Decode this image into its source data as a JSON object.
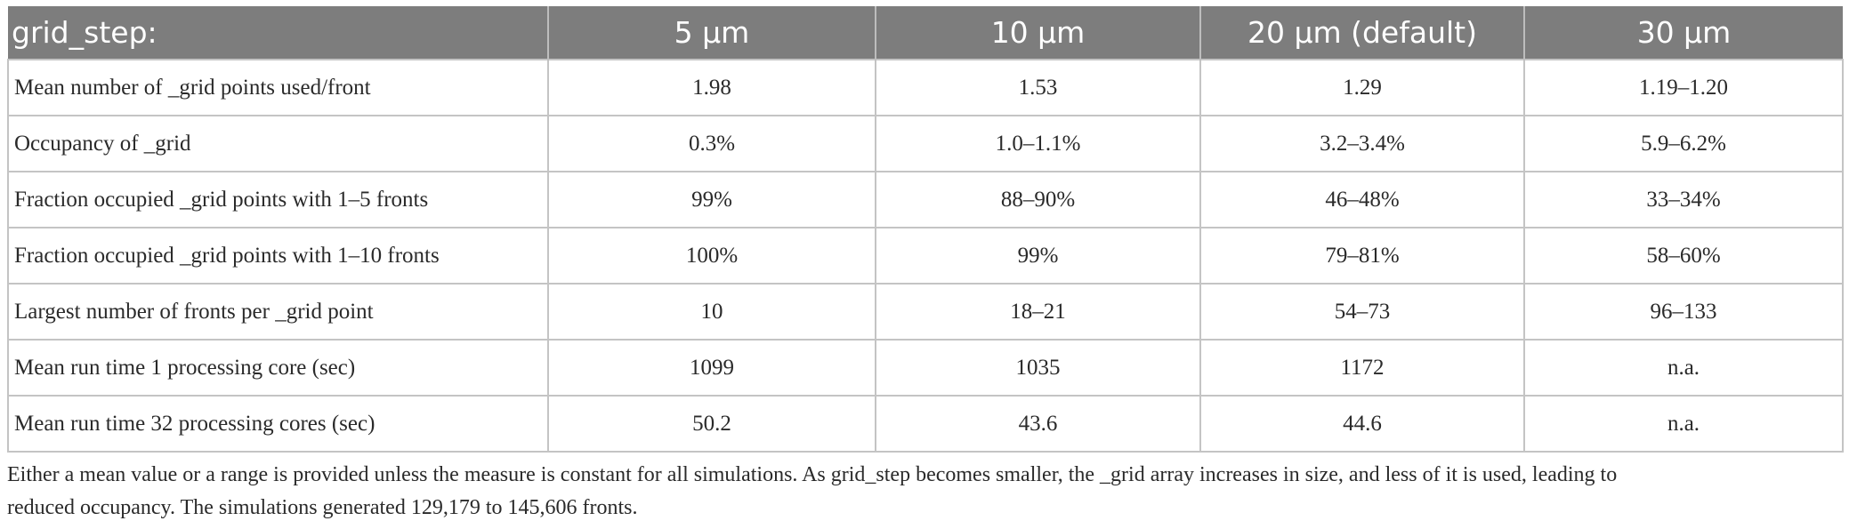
{
  "table": {
    "headers": [
      "grid_step:",
      "5 μm",
      "10 μm",
      "20 μm (default)",
      "30 μm"
    ],
    "rows": [
      [
        "Mean number of _grid points used/front",
        "1.98",
        "1.53",
        "1.29",
        "1.19–1.20"
      ],
      [
        "Occupancy of _grid",
        "0.3%",
        "1.0–1.1%",
        "3.2–3.4%",
        "5.9–6.2%"
      ],
      [
        "Fraction occupied _grid points with 1–5 fronts",
        "99%",
        "88–90%",
        "46–48%",
        "33–34%"
      ],
      [
        "Fraction occupied _grid points with 1–10 fronts",
        "100%",
        "99%",
        "79–81%",
        "58–60%"
      ],
      [
        "Largest number of fronts per _grid point",
        "10",
        "18–21",
        "54–73",
        "96–133"
      ],
      [
        "Mean run time 1 processing core (sec)",
        "1099",
        "1035",
        "1172",
        "n.a."
      ],
      [
        "Mean run time 32 processing cores (sec)",
        "50.2",
        "43.6",
        "44.6",
        "n.a."
      ]
    ]
  },
  "caption": {
    "line1": "Either a mean value or a range is provided unless the measure is constant for all simulations. As grid_step becomes smaller, the _grid array increases in size, and less of it is used, leading to",
    "line2": "reduced occupancy. The simulations generated 129,179 to 145,606 fronts."
  },
  "colors": {
    "header_bg": "#7d7d7d",
    "header_text": "#ffffff",
    "grid_line": "#c4c4c4",
    "body_text": "#2a2a2a"
  }
}
